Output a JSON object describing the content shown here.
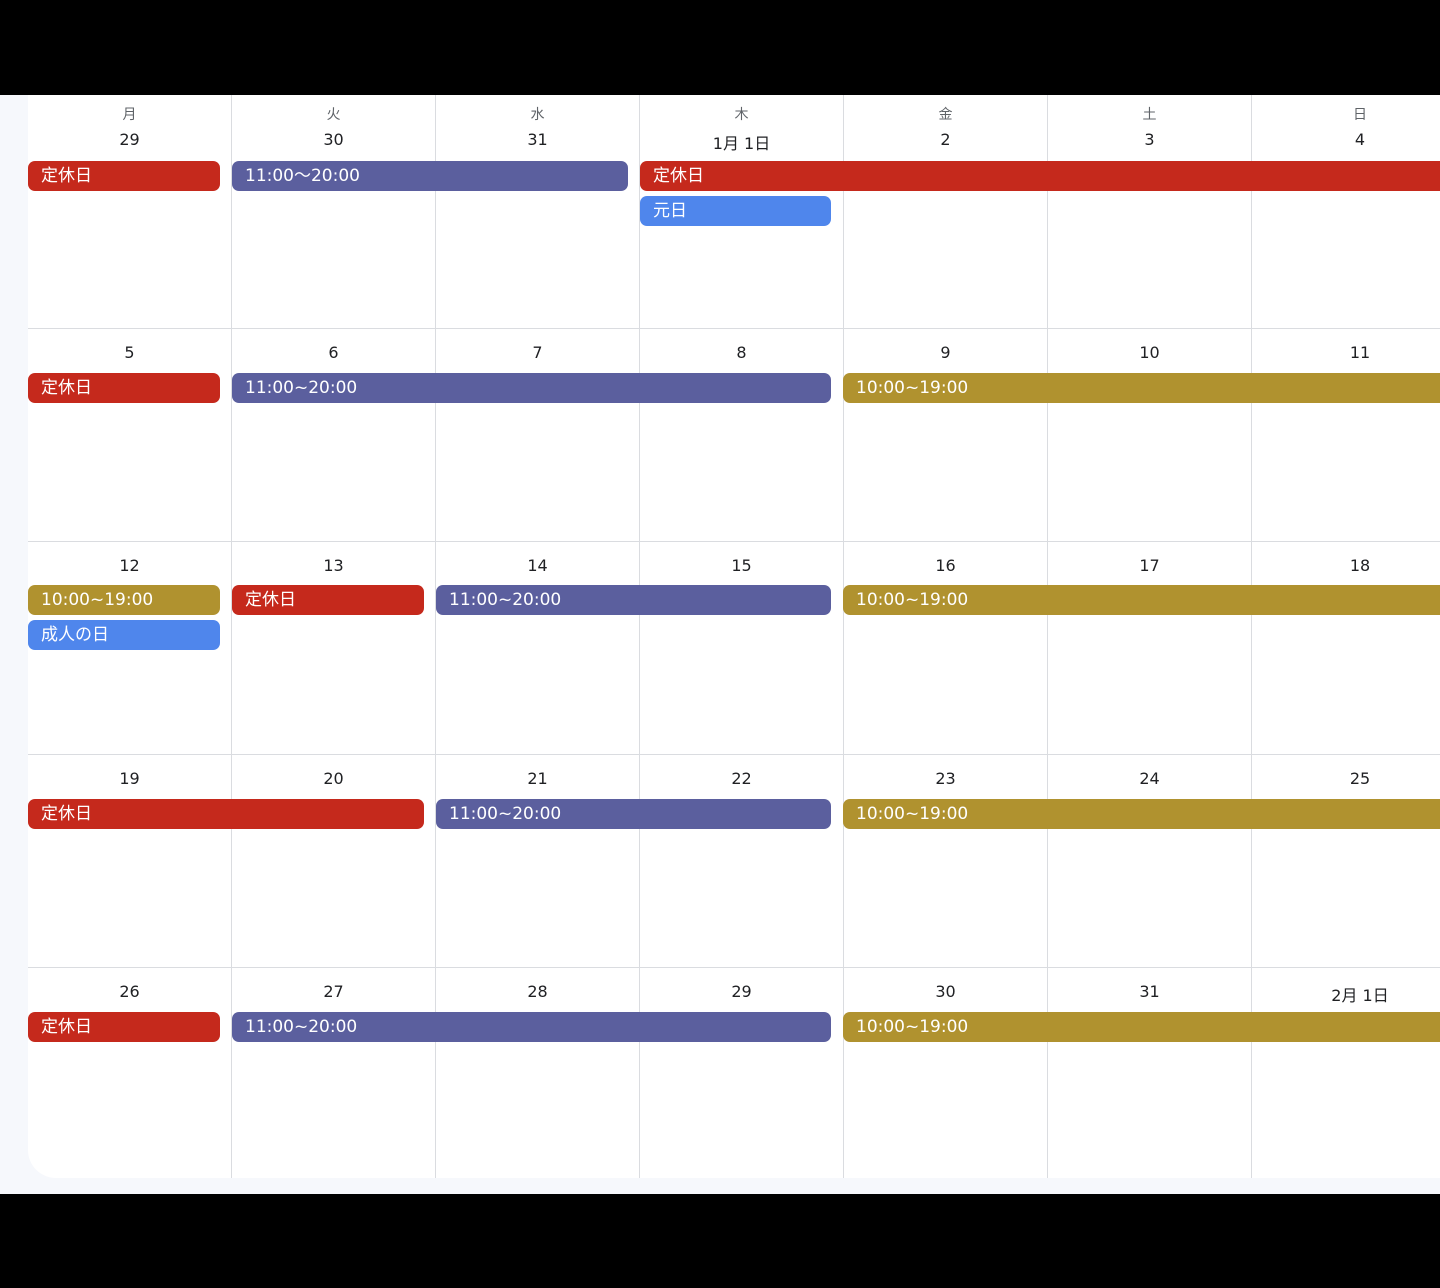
{
  "weekdays": [
    "月",
    "火",
    "水",
    "木",
    "金",
    "土",
    "日"
  ],
  "weeks": [
    {
      "days": [
        "29",
        "30",
        "31",
        "1月 1日",
        "2",
        "3",
        "4"
      ]
    },
    {
      "days": [
        "5",
        "6",
        "7",
        "8",
        "9",
        "10",
        "11"
      ]
    },
    {
      "days": [
        "12",
        "13",
        "14",
        "15",
        "16",
        "17",
        "18"
      ]
    },
    {
      "days": [
        "19",
        "20",
        "21",
        "22",
        "23",
        "24",
        "25"
      ]
    },
    {
      "days": [
        "26",
        "27",
        "28",
        "29",
        "30",
        "31",
        "2月 1日"
      ]
    }
  ],
  "events": {
    "w1_holiday_mon": "定休日",
    "w1_tuewed": "11:00〜20:00",
    "w1_holiday_thu_sun": "定休日",
    "w1_newyear": "元日",
    "w2_holiday_mon": "定休日",
    "w2_tuethu": "11:00~20:00",
    "w2_frisun": "10:00~19:00",
    "w3_mon": "10:00~19:00",
    "w3_coming_of_age": "成人の日",
    "w3_holiday_tue": "定休日",
    "w3_wedthu": "11:00~20:00",
    "w3_frisun": "10:00~19:00",
    "w4_holiday_montue": "定休日",
    "w4_wedthu": "11:00~20:00",
    "w4_frisun": "10:00~19:00",
    "w5_holiday_mon": "定休日",
    "w5_tuethu": "11:00~20:00",
    "w5_frisun": "10:00~19:00"
  },
  "colors": {
    "holiday": "#c5291c",
    "hours_a": "#5b5f9e",
    "hours_b": "#b0922f",
    "public_holiday": "#4f86ec"
  }
}
